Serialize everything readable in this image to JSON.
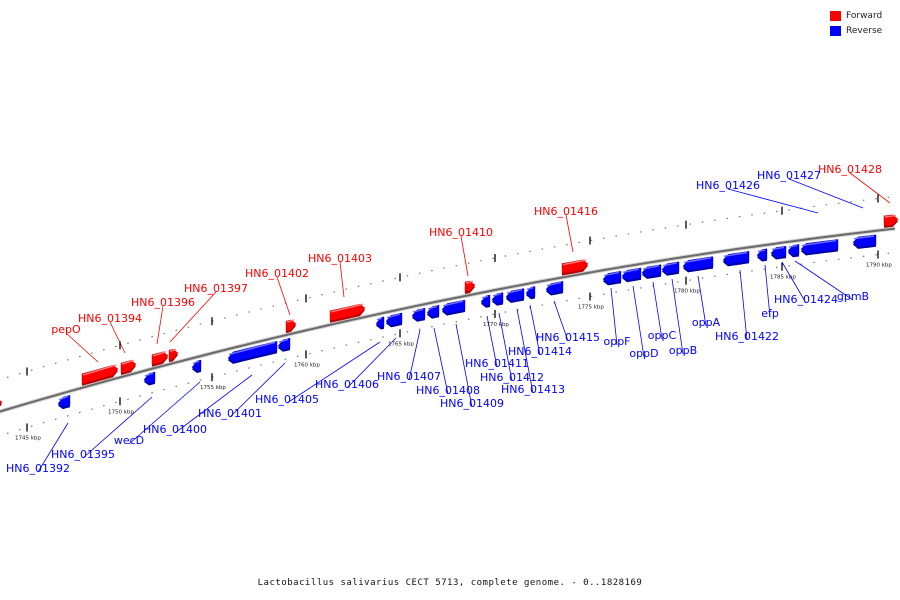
{
  "legend": {
    "forward": {
      "label": "Forward",
      "color": "#ff0000"
    },
    "reverse": {
      "label": "Reverse",
      "color": "#0000ff"
    }
  },
  "caption": "Lactobacillus salivarius CECT 5713, complete genome. - 0..1828169",
  "ticks": [
    "1745 kbp",
    "1750 kbp",
    "1755 kbp",
    "1760 kbp",
    "1765 kbp",
    "1770 kbp",
    "1775 kbp",
    "1780 kbp",
    "1785 kbp",
    "1790 kbp"
  ],
  "forward_labels": [
    "pepO",
    "HN6_01394",
    "HN6_01396",
    "HN6_01397",
    "HN6_01402",
    "HN6_01403",
    "HN6_01410",
    "HN6_01416",
    "HN6_01428"
  ],
  "reverse_labels": [
    "HN6_01392",
    "HN6_01395",
    "wecD",
    "HN6_01400",
    "HN6_01401",
    "HN6_01405",
    "HN6_01406",
    "HN6_01407",
    "HN6_01408",
    "HN6_01409",
    "HN6_01411",
    "HN6_01412",
    "HN6_01413",
    "HN6_01414",
    "HN6_01415",
    "oppF",
    "oppD",
    "oppC",
    "oppB",
    "oppA",
    "HN6_01422",
    "efp",
    "HN6_01424",
    "gpmB",
    "HN6_01426",
    "HN6_01427"
  ]
}
